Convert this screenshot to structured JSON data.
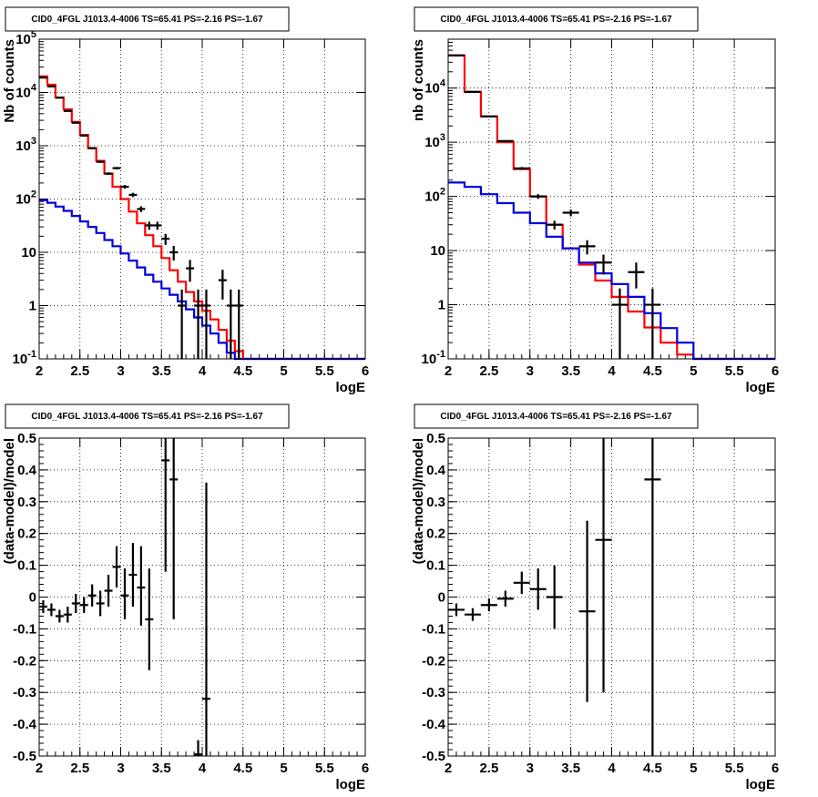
{
  "chart_data": [
    {
      "type": "step-histogram",
      "title": "CID0_4FGL J1013.4-4006 TS=65.41 PS=-2.16 PS=-1.67",
      "xlabel": "logE",
      "ylabel": "Nb of counts",
      "xlim": [
        2,
        6
      ],
      "ylim": [
        0.1,
        100000
      ],
      "yscale": "log",
      "grid": true,
      "xticks": [
        "2",
        "2.5",
        "3",
        "3.5",
        "4",
        "4.5",
        "5",
        "5.5",
        "6"
      ],
      "yticks": [
        "10^-1",
        "1",
        "10",
        "10^2",
        "10^3",
        "10^4",
        "10^5"
      ],
      "binning": {
        "start": 2.0,
        "width": 0.1,
        "count": 40
      },
      "series": [
        {
          "color": "#ff0000",
          "kind": "step",
          "values": [
            20000,
            14000,
            8000,
            4800,
            2800,
            1600,
            900,
            520,
            300,
            170,
            100,
            58,
            35,
            21,
            13,
            7.8,
            4.6,
            2.8,
            1.8,
            1.2,
            0.8,
            0.55,
            0.35,
            0.22,
            0.14,
            0.1,
            0.1,
            0.1,
            0.1,
            0.1,
            0.1,
            0.1,
            0.1,
            0.1,
            0.1,
            0.1,
            0.1,
            0.1,
            0.1,
            0.1
          ]
        },
        {
          "color": "#0000dd",
          "kind": "step",
          "values": [
            95,
            85,
            72,
            60,
            48,
            38,
            30,
            23,
            17,
            13,
            9.5,
            7,
            5.2,
            3.8,
            2.8,
            2.1,
            1.6,
            1.2,
            0.85,
            0.6,
            0.42,
            0.3,
            0.2,
            0.13,
            0.1,
            0.1,
            0.1,
            0.1,
            0.1,
            0.1,
            0.1,
            0.1,
            0.1,
            0.1,
            0.1,
            0.1,
            0.1,
            0.1,
            0.1,
            0.1
          ]
        }
      ],
      "points": [
        {
          "x": 2.05,
          "y": 19000,
          "lo": 18800,
          "hi": 19200
        },
        {
          "x": 2.15,
          "y": 13000,
          "lo": 12850,
          "hi": 13150
        },
        {
          "x": 2.25,
          "y": 8000,
          "lo": 7900,
          "hi": 8100
        },
        {
          "x": 2.35,
          "y": 4500,
          "lo": 4430,
          "hi": 4570
        },
        {
          "x": 2.45,
          "y": 2700,
          "lo": 2650,
          "hi": 2750
        },
        {
          "x": 2.55,
          "y": 1550,
          "lo": 1510,
          "hi": 1590
        },
        {
          "x": 2.65,
          "y": 900,
          "lo": 870,
          "hi": 930
        },
        {
          "x": 2.75,
          "y": 500,
          "lo": 478,
          "hi": 522
        },
        {
          "x": 2.85,
          "y": 300,
          "lo": 283,
          "hi": 317
        },
        {
          "x": 2.95,
          "y": 380,
          "lo": 360,
          "hi": 400
        },
        {
          "x": 3.05,
          "y": 170,
          "lo": 157,
          "hi": 183
        },
        {
          "x": 3.15,
          "y": 120,
          "lo": 109,
          "hi": 131
        },
        {
          "x": 3.25,
          "y": 65,
          "lo": 57,
          "hi": 73
        },
        {
          "x": 3.35,
          "y": 32,
          "lo": 26.5,
          "hi": 37.5
        },
        {
          "x": 3.45,
          "y": 32,
          "lo": 26.5,
          "hi": 37.5
        },
        {
          "x": 3.55,
          "y": 18,
          "lo": 13.8,
          "hi": 22.2
        },
        {
          "x": 3.65,
          "y": 10,
          "lo": 7,
          "hi": 13.2
        },
        {
          "x": 3.75,
          "y": 1,
          "lo": 0.1,
          "hi": 2
        },
        {
          "x": 3.85,
          "y": 5,
          "lo": 2.8,
          "hi": 7.2
        },
        {
          "x": 3.95,
          "y": 1,
          "lo": 0.1,
          "hi": 2
        },
        {
          "x": 4.05,
          "y": 1,
          "lo": 0.1,
          "hi": 2
        },
        {
          "x": 4.25,
          "y": 3,
          "lo": 1.3,
          "hi": 4.7
        },
        {
          "x": 4.35,
          "y": 1,
          "lo": 0.1,
          "hi": 2
        },
        {
          "x": 4.45,
          "y": 1,
          "lo": 0.1,
          "hi": 2
        }
      ]
    },
    {
      "type": "step-histogram",
      "title": "CID0_4FGL J1013.4-4006 TS=65.41 PS=-2.16 PS=-1.67",
      "xlabel": "logE",
      "ylabel": "nb of counts",
      "xlim": [
        2,
        6
      ],
      "ylim": [
        0.1,
        80000
      ],
      "yscale": "log",
      "grid": true,
      "xticks": [
        "2",
        "2.5",
        "3",
        "3.5",
        "4",
        "4.5",
        "5",
        "5.5",
        "6"
      ],
      "yticks": [
        "10^-1",
        "1",
        "10",
        "10^2",
        "10^3",
        "10^4"
      ],
      "binning": {
        "start": 2.0,
        "width": 0.2,
        "count": 20
      },
      "series": [
        {
          "color": "#ff0000",
          "kind": "step",
          "values": [
            40000,
            8500,
            3000,
            1000,
            320,
            100,
            30,
            11,
            5.5,
            2.8,
            1.4,
            0.75,
            0.38,
            0.2,
            0.12,
            0.1,
            0.1,
            0.1,
            0.1,
            0.1
          ]
        },
        {
          "color": "#0000dd",
          "kind": "step",
          "values": [
            180,
            150,
            110,
            75,
            50,
            32,
            18,
            11,
            6,
            3.8,
            2.4,
            1.4,
            0.7,
            0.37,
            0.2,
            0.1,
            0.1,
            0.1,
            0.1,
            0.1
          ]
        }
      ],
      "points": [
        {
          "x": 2.1,
          "y": 40000,
          "lo": 39800,
          "hi": 40200
        },
        {
          "x": 2.3,
          "y": 8500,
          "lo": 8400,
          "hi": 8600
        },
        {
          "x": 2.5,
          "y": 3000,
          "lo": 2940,
          "hi": 3060
        },
        {
          "x": 2.7,
          "y": 1050,
          "lo": 1015,
          "hi": 1085
        },
        {
          "x": 2.9,
          "y": 330,
          "lo": 312,
          "hi": 348
        },
        {
          "x": 3.1,
          "y": 100,
          "lo": 90,
          "hi": 110
        },
        {
          "x": 3.3,
          "y": 30,
          "lo": 24.5,
          "hi": 35.5
        },
        {
          "x": 3.5,
          "y": 50,
          "lo": 43,
          "hi": 57
        },
        {
          "x": 3.7,
          "y": 12,
          "lo": 8.5,
          "hi": 15.5
        },
        {
          "x": 3.9,
          "y": 6,
          "lo": 3.6,
          "hi": 8.4
        },
        {
          "x": 4.1,
          "y": 1,
          "lo": 0.1,
          "hi": 2
        },
        {
          "x": 4.3,
          "y": 4,
          "lo": 2,
          "hi": 6
        },
        {
          "x": 4.5,
          "y": 1,
          "lo": 0.1,
          "hi": 2
        }
      ]
    },
    {
      "type": "scatter",
      "title": "CID0_4FGL J1013.4-4006 TS=65.41 PS=-2.16 PS=-1.67",
      "xlabel": "logE",
      "ylabel": "(data-model)/model",
      "xlim": [
        2,
        6
      ],
      "ylim": [
        -0.5,
        0.5
      ],
      "yscale": "linear",
      "grid": true,
      "xticks": [
        "2",
        "2.5",
        "3",
        "3.5",
        "4",
        "4.5",
        "5",
        "5.5",
        "6"
      ],
      "yticks": [
        "-0.5",
        "-0.4",
        "-0.3",
        "-0.2",
        "-0.1",
        "0",
        "0.1",
        "0.2",
        "0.3",
        "0.4",
        "0.5"
      ],
      "xhalf": 0.05,
      "points": [
        {
          "x": 2.05,
          "y": -0.03,
          "lo": -0.05,
          "hi": -0.01
        },
        {
          "x": 2.15,
          "y": -0.04,
          "lo": -0.06,
          "hi": -0.02
        },
        {
          "x": 2.25,
          "y": -0.06,
          "lo": -0.08,
          "hi": -0.04
        },
        {
          "x": 2.35,
          "y": -0.055,
          "lo": -0.08,
          "hi": -0.03
        },
        {
          "x": 2.45,
          "y": -0.02,
          "lo": -0.05,
          "hi": 0.01
        },
        {
          "x": 2.55,
          "y": -0.025,
          "lo": -0.05,
          "hi": 0.0
        },
        {
          "x": 2.65,
          "y": 0.005,
          "lo": -0.03,
          "hi": 0.04
        },
        {
          "x": 2.75,
          "y": -0.02,
          "lo": -0.06,
          "hi": 0.02
        },
        {
          "x": 2.85,
          "y": 0.02,
          "lo": -0.03,
          "hi": 0.07
        },
        {
          "x": 2.95,
          "y": 0.095,
          "lo": 0.03,
          "hi": 0.16
        },
        {
          "x": 3.05,
          "y": 0.005,
          "lo": -0.07,
          "hi": 0.09
        },
        {
          "x": 3.15,
          "y": 0.07,
          "lo": -0.03,
          "hi": 0.17
        },
        {
          "x": 3.25,
          "y": 0.03,
          "lo": -0.09,
          "hi": 0.16
        },
        {
          "x": 3.35,
          "y": -0.07,
          "lo": -0.23,
          "hi": 0.09
        },
        {
          "x": 3.55,
          "y": 0.43,
          "lo": 0.08,
          "hi": 0.5
        },
        {
          "x": 3.65,
          "y": 0.37,
          "lo": -0.07,
          "hi": 0.5
        },
        {
          "x": 3.95,
          "y": -0.495,
          "lo": -0.5,
          "hi": -0.45
        },
        {
          "x": 4.05,
          "y": -0.32,
          "lo": -0.5,
          "hi": 0.36
        }
      ]
    },
    {
      "type": "scatter",
      "title": "CID0_4FGL J1013.4-4006 TS=65.41 PS=-2.16 PS=-1.67",
      "xlabel": "logE",
      "ylabel": "(data-model)/model",
      "xlim": [
        2,
        6
      ],
      "ylim": [
        -0.5,
        0.5
      ],
      "yscale": "linear",
      "grid": true,
      "xticks": [
        "2",
        "2.5",
        "3",
        "3.5",
        "4",
        "4.5",
        "5",
        "5.5",
        "6"
      ],
      "yticks": [
        "-0.5",
        "-0.4",
        "-0.3",
        "-0.2",
        "-0.1",
        "0",
        "0.1",
        "0.2",
        "0.3",
        "0.4",
        "0.5"
      ],
      "xhalf": 0.1,
      "points": [
        {
          "x": 2.1,
          "y": -0.04,
          "lo": -0.06,
          "hi": -0.02
        },
        {
          "x": 2.3,
          "y": -0.055,
          "lo": -0.075,
          "hi": -0.035
        },
        {
          "x": 2.5,
          "y": -0.025,
          "lo": -0.045,
          "hi": -0.005
        },
        {
          "x": 2.7,
          "y": -0.005,
          "lo": -0.03,
          "hi": 0.02
        },
        {
          "x": 2.9,
          "y": 0.045,
          "lo": 0.01,
          "hi": 0.08
        },
        {
          "x": 3.1,
          "y": 0.025,
          "lo": -0.04,
          "hi": 0.09
        },
        {
          "x": 3.3,
          "y": 0.0,
          "lo": -0.1,
          "hi": 0.1
        },
        {
          "x": 3.7,
          "y": -0.045,
          "lo": -0.33,
          "hi": 0.24
        },
        {
          "x": 3.9,
          "y": 0.18,
          "lo": -0.3,
          "hi": 0.5
        },
        {
          "x": 4.5,
          "y": 0.37,
          "lo": -0.5,
          "hi": 0.5
        }
      ]
    }
  ]
}
